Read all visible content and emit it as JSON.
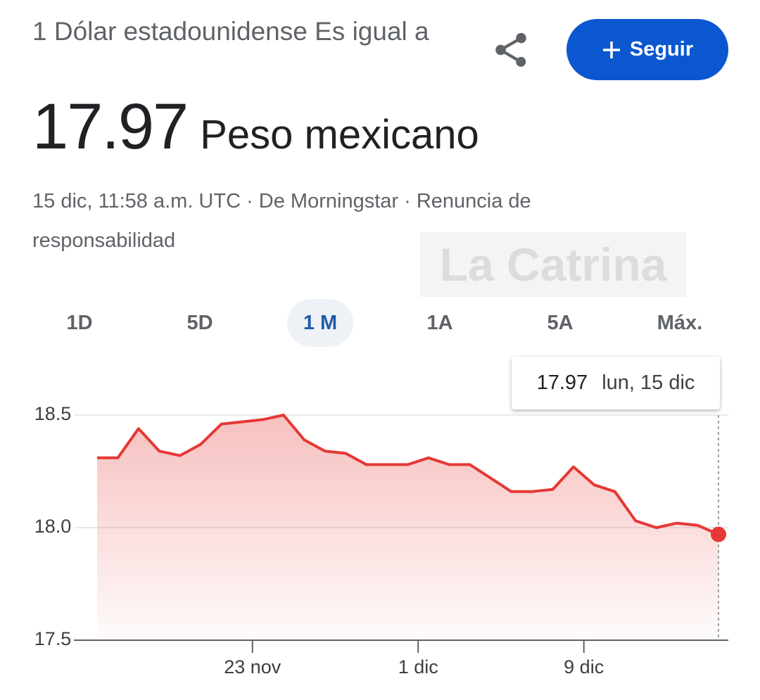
{
  "header": {
    "title": "1 Dólar estadounidense Es igual a",
    "currency": "Peso mexicano",
    "meta": "15 dic, 11:58 a.m. UTC · De Morningstar · Renuncia de responsabilidad",
    "follow_button": "Seguir",
    "watermark": "La Catrina"
  },
  "tabs": [
    "1D",
    "5D",
    "1 M",
    "1A",
    "5A",
    "Máx."
  ],
  "selected_tab": 2,
  "chart_data": {
    "type": "area",
    "color": "#e53935",
    "categories": [
      null,
      null,
      null,
      null,
      null,
      null,
      null,
      null,
      "23 nov",
      null,
      null,
      null,
      null,
      null,
      null,
      null,
      "1 dic",
      null,
      null,
      null,
      null,
      null,
      null,
      null,
      "9 dic",
      null,
      null,
      null,
      null,
      null,
      null
    ],
    "values": [
      18.31,
      18.31,
      18.44,
      18.34,
      18.32,
      18.37,
      18.46,
      18.47,
      18.48,
      18.5,
      18.39,
      18.34,
      18.33,
      18.28,
      18.28,
      18.28,
      18.31,
      18.28,
      18.28,
      18.22,
      18.16,
      18.16,
      18.17,
      18.27,
      18.19,
      18.16,
      18.03,
      18.0,
      18.02,
      18.01,
      17.97
    ],
    "ylim": [
      17.5,
      18.75
    ],
    "yticks": [
      17.5,
      {
        "value": 18,
        "label": "18.0"
      },
      18.5
    ],
    "grid": true,
    "tooltip_date": "lun, 15 dic"
  }
}
